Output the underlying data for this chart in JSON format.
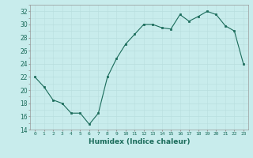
{
  "x": [
    0,
    1,
    2,
    3,
    4,
    5,
    6,
    7,
    8,
    9,
    10,
    11,
    12,
    13,
    14,
    15,
    16,
    17,
    18,
    19,
    20,
    21,
    22,
    23
  ],
  "y": [
    22,
    20.5,
    18.5,
    18,
    16.5,
    16.5,
    14.8,
    16.5,
    22,
    24.8,
    27,
    28.5,
    30,
    30,
    29.5,
    29.3,
    31.5,
    30.5,
    31.2,
    32,
    31.5,
    29.8,
    29,
    24
  ],
  "line_color": "#1a6b5a",
  "marker_color": "#1a6b5a",
  "bg_color": "#c8ecec",
  "grid_color": "#b8dede",
  "xlabel": "Humidex (Indice chaleur)",
  "ylim": [
    14,
    33
  ],
  "xlim": [
    -0.5,
    23.5
  ],
  "yticks": [
    14,
    16,
    18,
    20,
    22,
    24,
    26,
    28,
    30,
    32
  ],
  "xticks": [
    0,
    1,
    2,
    3,
    4,
    5,
    6,
    7,
    8,
    9,
    10,
    11,
    12,
    13,
    14,
    15,
    16,
    17,
    18,
    19,
    20,
    21,
    22,
    23
  ]
}
